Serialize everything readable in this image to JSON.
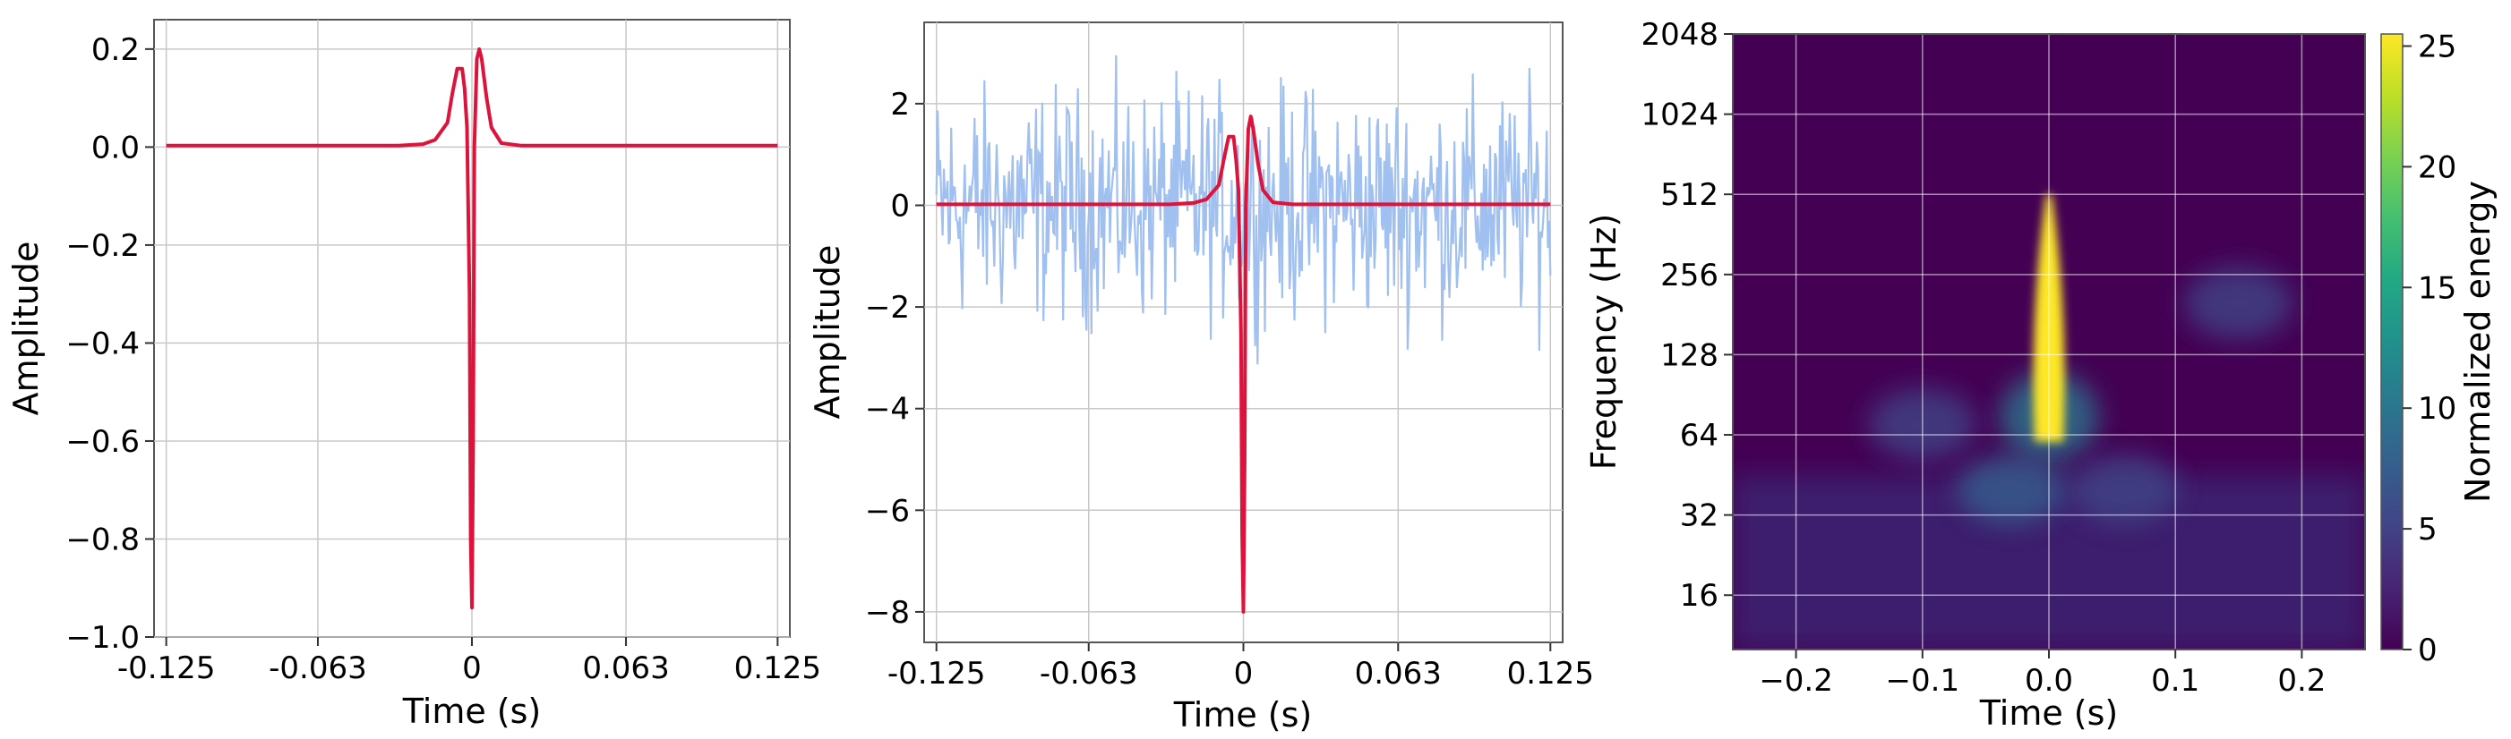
{
  "chart_data": [
    {
      "type": "line",
      "xlabel": "Time (s)",
      "ylabel": "Amplitude",
      "xlim": [
        -0.13,
        0.13
      ],
      "ylim": [
        -1.0,
        0.26
      ],
      "grid": true,
      "x_ticks": [
        {
          "value": -0.125,
          "label": "-0.125"
        },
        {
          "value": -0.063,
          "label": "-0.063"
        },
        {
          "value": 0,
          "label": "0"
        },
        {
          "value": 0.063,
          "label": "0.063"
        },
        {
          "value": 0.125,
          "label": "0.125"
        }
      ],
      "y_ticks": [
        {
          "value": 0.2,
          "label": "0.2"
        },
        {
          "value": 0.0,
          "label": "0.0"
        },
        {
          "value": -0.2,
          "label": "−0.2"
        },
        {
          "value": -0.4,
          "label": "−0.4"
        },
        {
          "value": -0.6,
          "label": "−0.6"
        },
        {
          "value": -0.8,
          "label": "−0.8"
        },
        {
          "value": -1.0,
          "label": "−1.0"
        }
      ],
      "series": [
        {
          "color": "#dc143c",
          "x": [
            -0.125,
            -0.03,
            -0.02,
            -0.015,
            -0.01,
            -0.008,
            -0.006,
            -0.004,
            -0.003,
            -0.002,
            -0.001,
            -0.0005,
            0,
            0.0005,
            0.001,
            0.002,
            0.003,
            0.004,
            0.006,
            0.008,
            0.012,
            0.02,
            0.125
          ],
          "y": [
            0.003,
            0.003,
            0.006,
            0.015,
            0.05,
            0.11,
            0.16,
            0.16,
            0.12,
            0.04,
            -0.3,
            -0.8,
            -0.94,
            -0.6,
            0.0,
            0.18,
            0.2,
            0.18,
            0.1,
            0.04,
            0.008,
            0.003,
            0.003
          ]
        }
      ]
    },
    {
      "type": "line",
      "xlabel": "Time (s)",
      "ylabel": "Amplitude",
      "xlim": [
        -0.13,
        0.13
      ],
      "ylim": [
        -8.6,
        3.6
      ],
      "grid": true,
      "x_ticks": [
        {
          "value": -0.125,
          "label": "-0.125"
        },
        {
          "value": -0.063,
          "label": "-0.063"
        },
        {
          "value": 0,
          "label": "0"
        },
        {
          "value": 0.063,
          "label": "0.063"
        },
        {
          "value": 0.125,
          "label": "0.125"
        }
      ],
      "y_ticks": [
        {
          "value": 2,
          "label": "2"
        },
        {
          "value": 0,
          "label": "0"
        },
        {
          "value": -2,
          "label": "−2"
        },
        {
          "value": -4,
          "label": "−4"
        },
        {
          "value": -6,
          "label": "−6"
        },
        {
          "value": -8,
          "label": "−8"
        }
      ],
      "noise": {
        "color": "#a0c0f0",
        "x_range": [
          -0.125,
          0.125
        ],
        "n_points": 500,
        "y_min": -3.4,
        "y_max": 3.1
      },
      "series": [
        {
          "color": "#dc143c",
          "x": [
            -0.125,
            -0.03,
            -0.02,
            -0.015,
            -0.01,
            -0.008,
            -0.006,
            -0.004,
            -0.003,
            -0.002,
            -0.001,
            -0.0005,
            0,
            0.0005,
            0.001,
            0.002,
            0.003,
            0.004,
            0.006,
            0.008,
            0.012,
            0.02,
            0.125
          ],
          "y": [
            0.02,
            0.02,
            0.05,
            0.12,
            0.4,
            0.9,
            1.35,
            1.35,
            0.9,
            0.3,
            -2.5,
            -6.5,
            -8.0,
            -5.0,
            0.0,
            1.5,
            1.75,
            1.5,
            0.8,
            0.3,
            0.06,
            0.02,
            0.02
          ]
        }
      ]
    },
    {
      "type": "heatmap",
      "xlabel": "Time (s)",
      "ylabel": "Frequency (Hz)",
      "xlim": [
        -0.25,
        0.25
      ],
      "yscale": "log2",
      "ylim": [
        10,
        2048
      ],
      "grid": true,
      "x_ticks": [
        {
          "value": -0.2,
          "label": "−0.2"
        },
        {
          "value": -0.1,
          "label": "−0.1"
        },
        {
          "value": 0.0,
          "label": "0.0"
        },
        {
          "value": 0.1,
          "label": "0.1"
        },
        {
          "value": 0.2,
          "label": "0.2"
        }
      ],
      "y_ticks": [
        {
          "value": 16,
          "label": "16"
        },
        {
          "value": 32,
          "label": "32"
        },
        {
          "value": 64,
          "label": "64"
        },
        {
          "value": 128,
          "label": "128"
        },
        {
          "value": 256,
          "label": "256"
        },
        {
          "value": 512,
          "label": "512"
        },
        {
          "value": 1024,
          "label": "1024"
        },
        {
          "value": 2048,
          "label": "2048"
        }
      ],
      "colormap": "viridis",
      "colorbar": {
        "label": "Normalized energy",
        "range": [
          0,
          25.5
        ],
        "ticks": [
          {
            "value": 0,
            "label": "0"
          },
          {
            "value": 5,
            "label": "5"
          },
          {
            "value": 10,
            "label": "10"
          },
          {
            "value": 15,
            "label": "15"
          },
          {
            "value": 20,
            "label": "20"
          },
          {
            "value": 25,
            "label": "25"
          }
        ]
      },
      "features": [
        {
          "shape": "chirp",
          "time": 0.0,
          "freq_low": 64,
          "freq_high": 512,
          "peak_energy": 25.5
        },
        {
          "shape": "blob",
          "time": -0.03,
          "freq": 40,
          "energy": 8
        },
        {
          "shape": "blob",
          "time": 0.06,
          "freq": 40,
          "energy": 5
        },
        {
          "shape": "blob",
          "time": -0.1,
          "freq": 70,
          "energy": 5
        },
        {
          "shape": "blob",
          "time": 0.15,
          "freq": 200,
          "energy": 5
        }
      ]
    }
  ]
}
